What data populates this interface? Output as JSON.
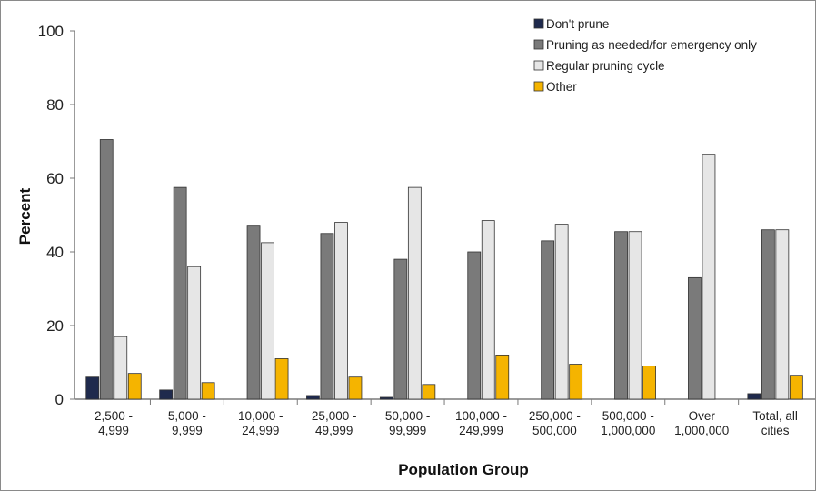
{
  "chart_data": {
    "type": "bar",
    "xlabel": "Population Group",
    "ylabel": "Percent",
    "ylim": [
      0,
      100
    ],
    "yticks": [
      0,
      20,
      40,
      60,
      80,
      100
    ],
    "grid": false,
    "legend_position": "top-right",
    "categories": [
      [
        "2,500 -",
        "4,999"
      ],
      [
        "5,000 -",
        "9,999"
      ],
      [
        "10,000 -",
        "24,999"
      ],
      [
        "25,000 -",
        "49,999"
      ],
      [
        "50,000 -",
        "99,999"
      ],
      [
        "100,000 -",
        "249,999"
      ],
      [
        "250,000 -",
        "500,000"
      ],
      [
        "500,000 -",
        "1,000,000"
      ],
      [
        "Over",
        "1,000,000"
      ],
      [
        "Total, all",
        "cities"
      ]
    ],
    "series": [
      {
        "name": "Don't prune",
        "color": "#1f2a4d",
        "values": [
          6,
          2.5,
          0,
          1,
          0.5,
          0,
          0,
          0,
          0,
          1.5
        ]
      },
      {
        "name": "Pruning as needed/for emergency only",
        "color": "#7a7a7a",
        "values": [
          70.5,
          57.5,
          47,
          45,
          38,
          40,
          43,
          45.5,
          33,
          46
        ]
      },
      {
        "name": "Regular pruning cycle",
        "color": "#e6e6e6",
        "values": [
          17,
          36,
          42.5,
          48,
          57.5,
          48.5,
          47.5,
          45.5,
          66.5,
          46
        ]
      },
      {
        "name": "Other",
        "color": "#f5b400",
        "values": [
          7,
          4.5,
          11,
          6,
          4,
          12,
          9.5,
          9,
          0,
          6.5
        ]
      }
    ]
  }
}
